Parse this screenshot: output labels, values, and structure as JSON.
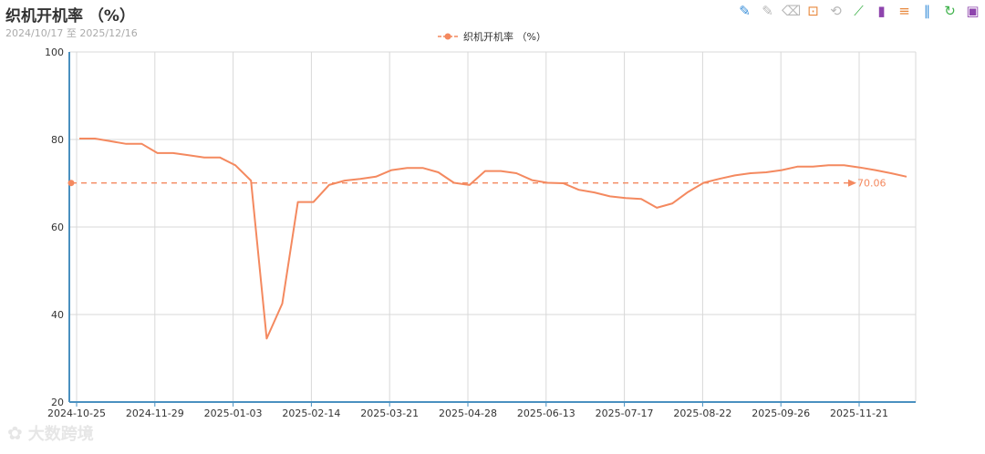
{
  "header": {
    "title": "织机开机率 （%）",
    "date_range": "2024/10/17 至 2025/12/16"
  },
  "toolbox": [
    {
      "name": "mark-line-icon",
      "glyph": "✎",
      "tone": "blue"
    },
    {
      "name": "mark-line-undo-icon",
      "glyph": "✎",
      "tone": "dim"
    },
    {
      "name": "mark-line-clear-icon",
      "glyph": "⌫",
      "tone": "dim"
    },
    {
      "name": "data-zoom-icon",
      "glyph": "⊡",
      "tone": "orange"
    },
    {
      "name": "data-zoom-reset-icon",
      "glyph": "⟲",
      "tone": "dim"
    },
    {
      "name": "line-chart-icon",
      "glyph": "⟋",
      "tone": "green"
    },
    {
      "name": "bar-chart-icon",
      "glyph": "▮",
      "tone": "purple"
    },
    {
      "name": "stack-icon",
      "glyph": "≡",
      "tone": "orange"
    },
    {
      "name": "tiled-icon",
      "glyph": "∥",
      "tone": "blue"
    },
    {
      "name": "restore-icon",
      "glyph": "↻",
      "tone": "green"
    },
    {
      "name": "save-image-icon",
      "glyph": "▣",
      "tone": "purple"
    }
  ],
  "watermark": {
    "text": "大数跨境"
  },
  "chart_data": {
    "type": "line",
    "series": [
      {
        "name": "织机开机率 （%）",
        "color": "#f4895f",
        "values": [
          80.2,
          80.2,
          79.6,
          79.0,
          79.0,
          76.9,
          76.9,
          76.4,
          75.9,
          75.9,
          74.1,
          70.6,
          34.5,
          42.5,
          65.7,
          65.7,
          69.6,
          70.6,
          71.0,
          71.5,
          73.0,
          73.5,
          73.5,
          72.5,
          70.1,
          69.6,
          72.8,
          72.8,
          72.3,
          70.7,
          70.1,
          70.0,
          68.5,
          67.9,
          67.0,
          66.6,
          66.4,
          64.4,
          65.4,
          68.0,
          70.1,
          71.0,
          71.8,
          72.3,
          72.5,
          73.0,
          73.8,
          73.8,
          74.1,
          74.1,
          73.6,
          73.0,
          72.3,
          71.5
        ]
      }
    ],
    "mark_line": {
      "label": "70.06",
      "value": 70.06,
      "style": "dashed"
    },
    "x_tick_labels": [
      "2024-10-25",
      "2024-11-29",
      "2025-01-03",
      "2025-02-14",
      "2025-03-21",
      "2025-04-28",
      "2025-06-13",
      "2025-07-17",
      "2025-08-22",
      "2025-09-26",
      "2025-11-21"
    ],
    "y_ticks": [
      20,
      40,
      60,
      80,
      100
    ],
    "ylim": [
      20,
      100
    ],
    "grid": true,
    "legend_position": "top-center",
    "xlabel": "",
    "ylabel": ""
  }
}
